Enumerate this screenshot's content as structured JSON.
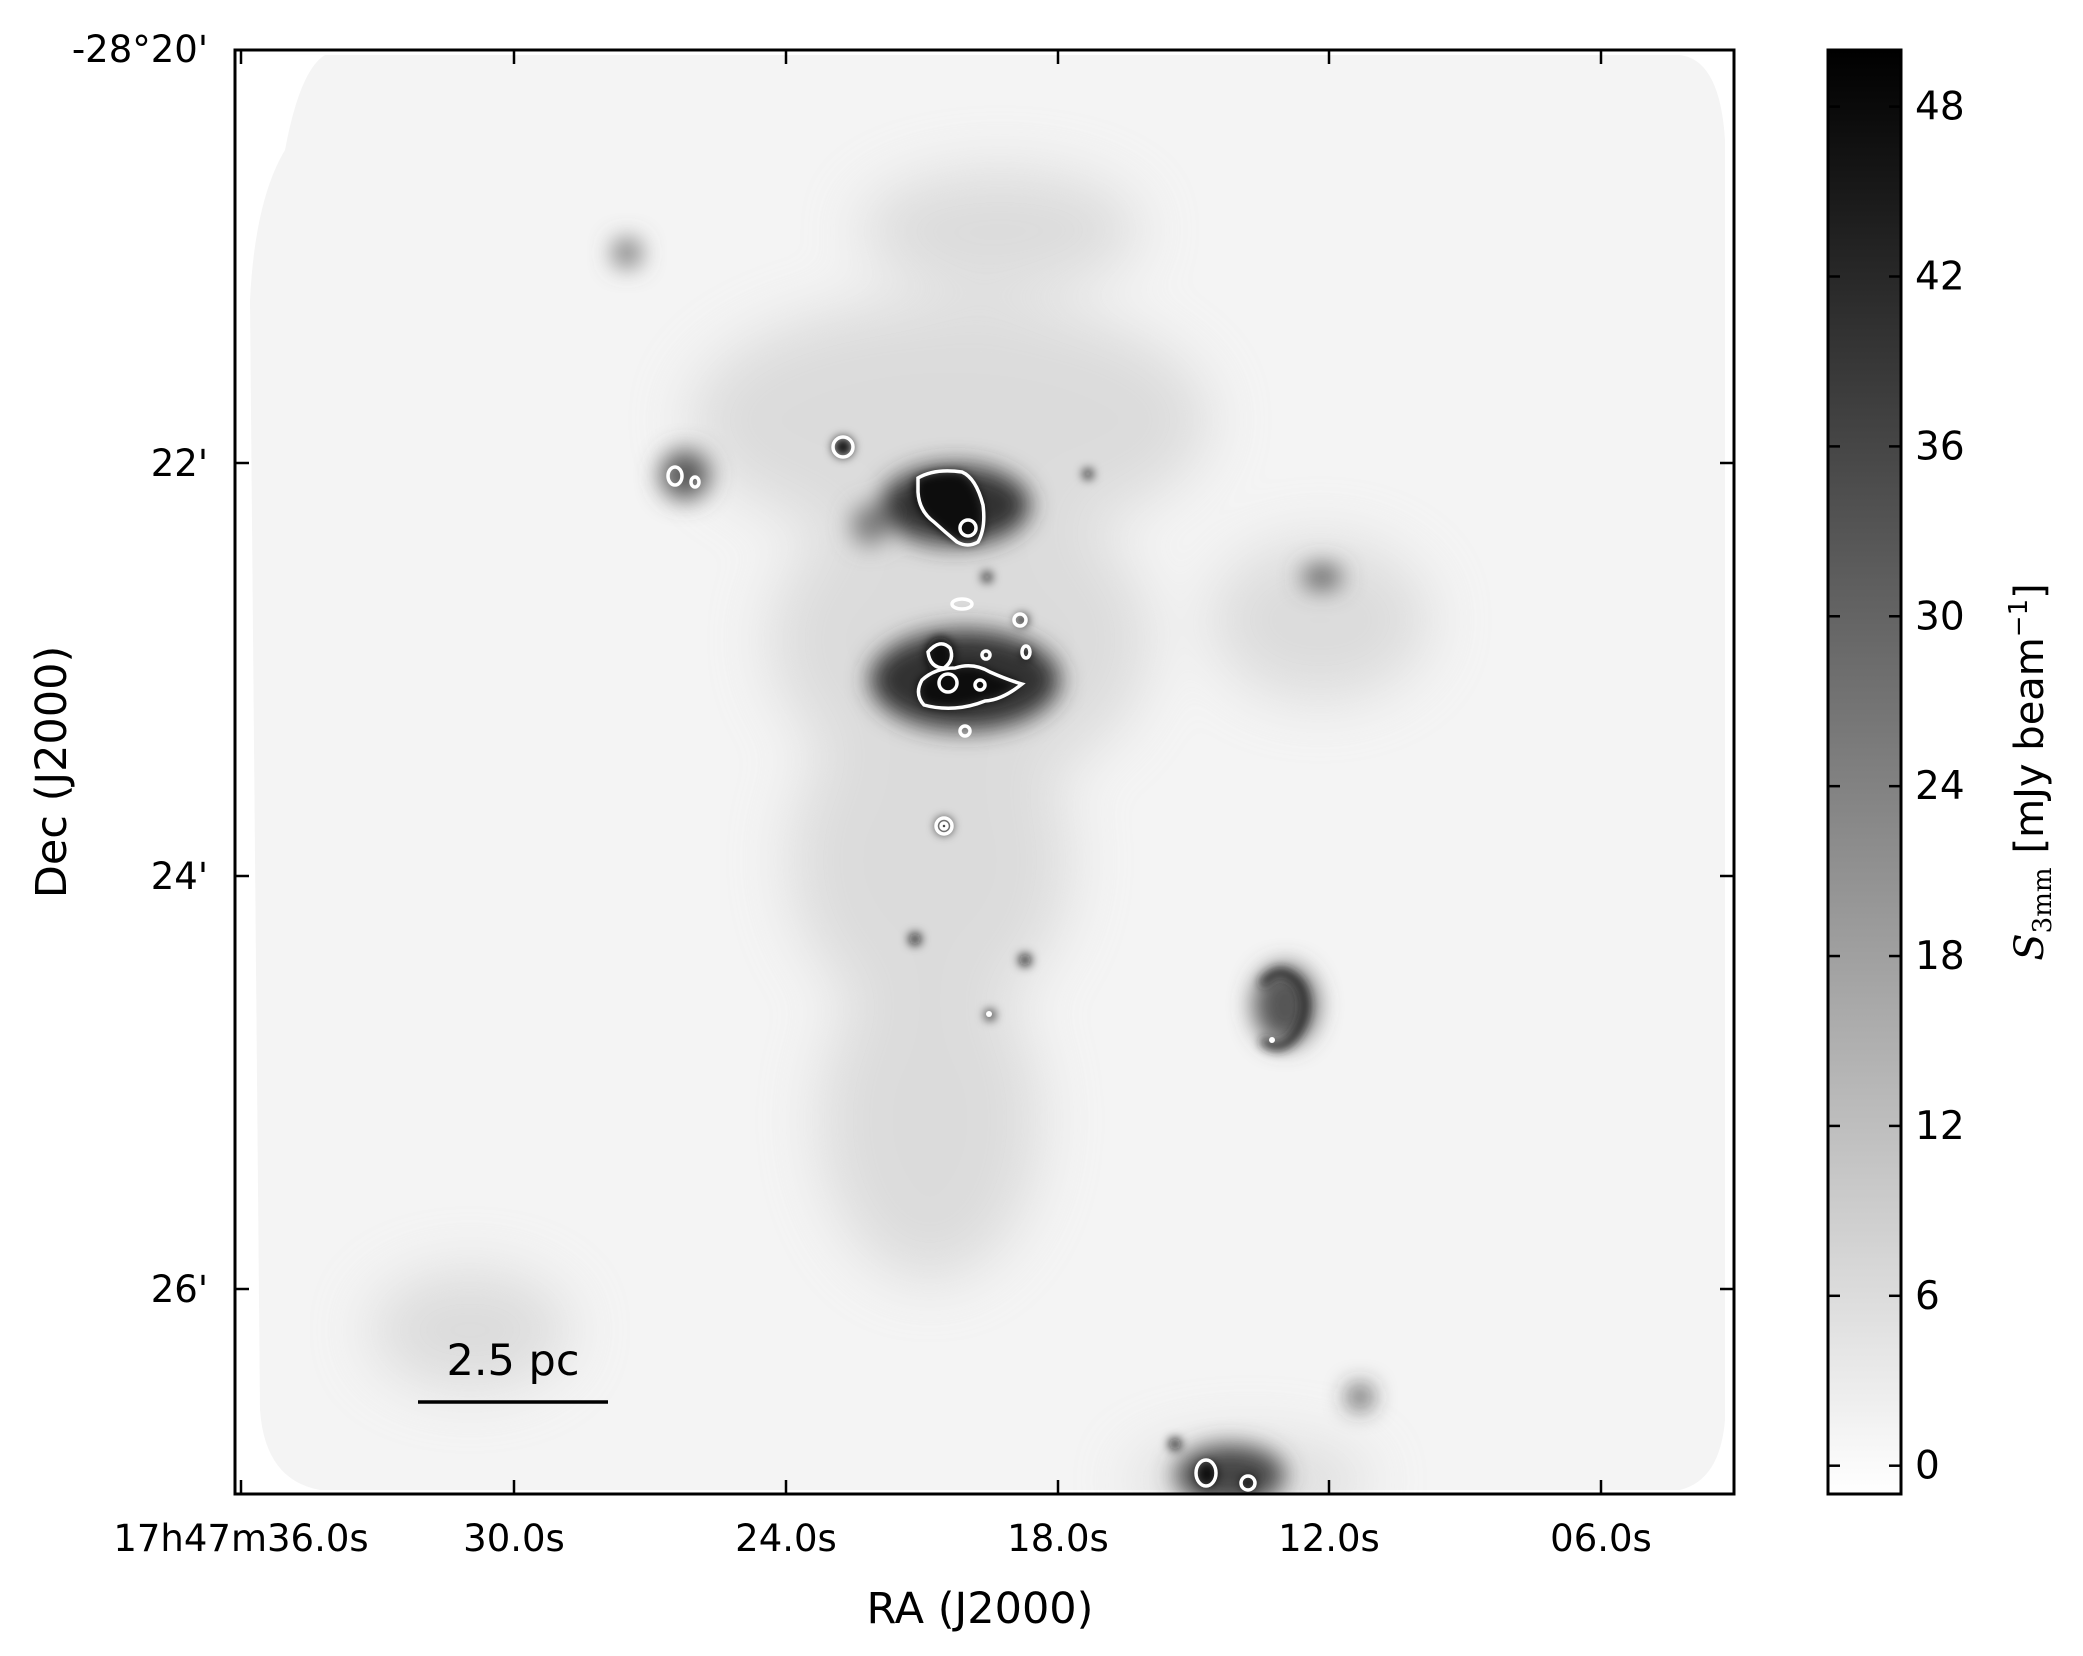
{
  "chart_data": {
    "type": "heatmap",
    "title": "",
    "xlabel": "RA (J2000)",
    "ylabel": "Dec (J2000)",
    "x_ticks": [
      "17h47m36.0s",
      "30.0s",
      "24.0s",
      "18.0s",
      "12.0s",
      "06.0s"
    ],
    "y_ticks": [
      "-28°20'",
      "22'",
      "24'",
      "26'"
    ],
    "colorbar": {
      "label_math": "S",
      "label_sub": "3mm",
      "label_unit_open": "[mJy beam",
      "label_sup": "−1",
      "label_unit_close": "]",
      "ticks": [
        48,
        42,
        36,
        30,
        24,
        18,
        12,
        6,
        0
      ],
      "ticks_text": [
        "48",
        "42",
        "36",
        "30",
        "24",
        "18",
        "12",
        "6",
        "0"
      ],
      "range": [
        -1,
        50
      ],
      "colormap": "gray_r"
    },
    "scale_bar": {
      "label": "2.5 pc",
      "length_pc": 2.5
    },
    "colors": {
      "background": "#ffffff",
      "map_base": "#f4f4f4",
      "contour": "#ffffff",
      "ink": "#000000"
    }
  }
}
